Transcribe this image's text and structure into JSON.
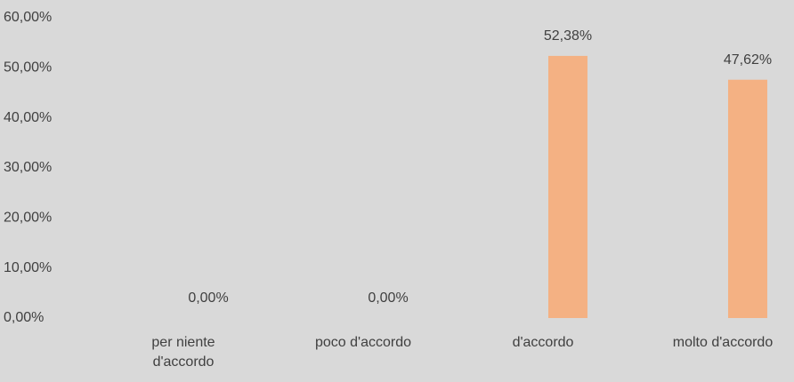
{
  "chart_data": {
    "type": "bar",
    "categories": [
      "per niente d'accordo",
      "poco d'accordo",
      "d'accordo",
      "molto d'accordo"
    ],
    "values": [
      0,
      0,
      52.38,
      47.62
    ],
    "value_labels": [
      "0,00%",
      "0,00%",
      "52,38%",
      "47,62%"
    ],
    "color": "#f4b183",
    "ylim": [
      0,
      60
    ],
    "yticks": [
      {
        "value": 0,
        "label": "0,00%"
      },
      {
        "value": 10,
        "label": "10,00%"
      },
      {
        "value": 20,
        "label": "20,00%"
      },
      {
        "value": 30,
        "label": "30,00%"
      },
      {
        "value": 40,
        "label": "40,00%"
      },
      {
        "value": 50,
        "label": "50,00%"
      },
      {
        "value": 60,
        "label": "60,00%"
      }
    ],
    "grid": false
  }
}
